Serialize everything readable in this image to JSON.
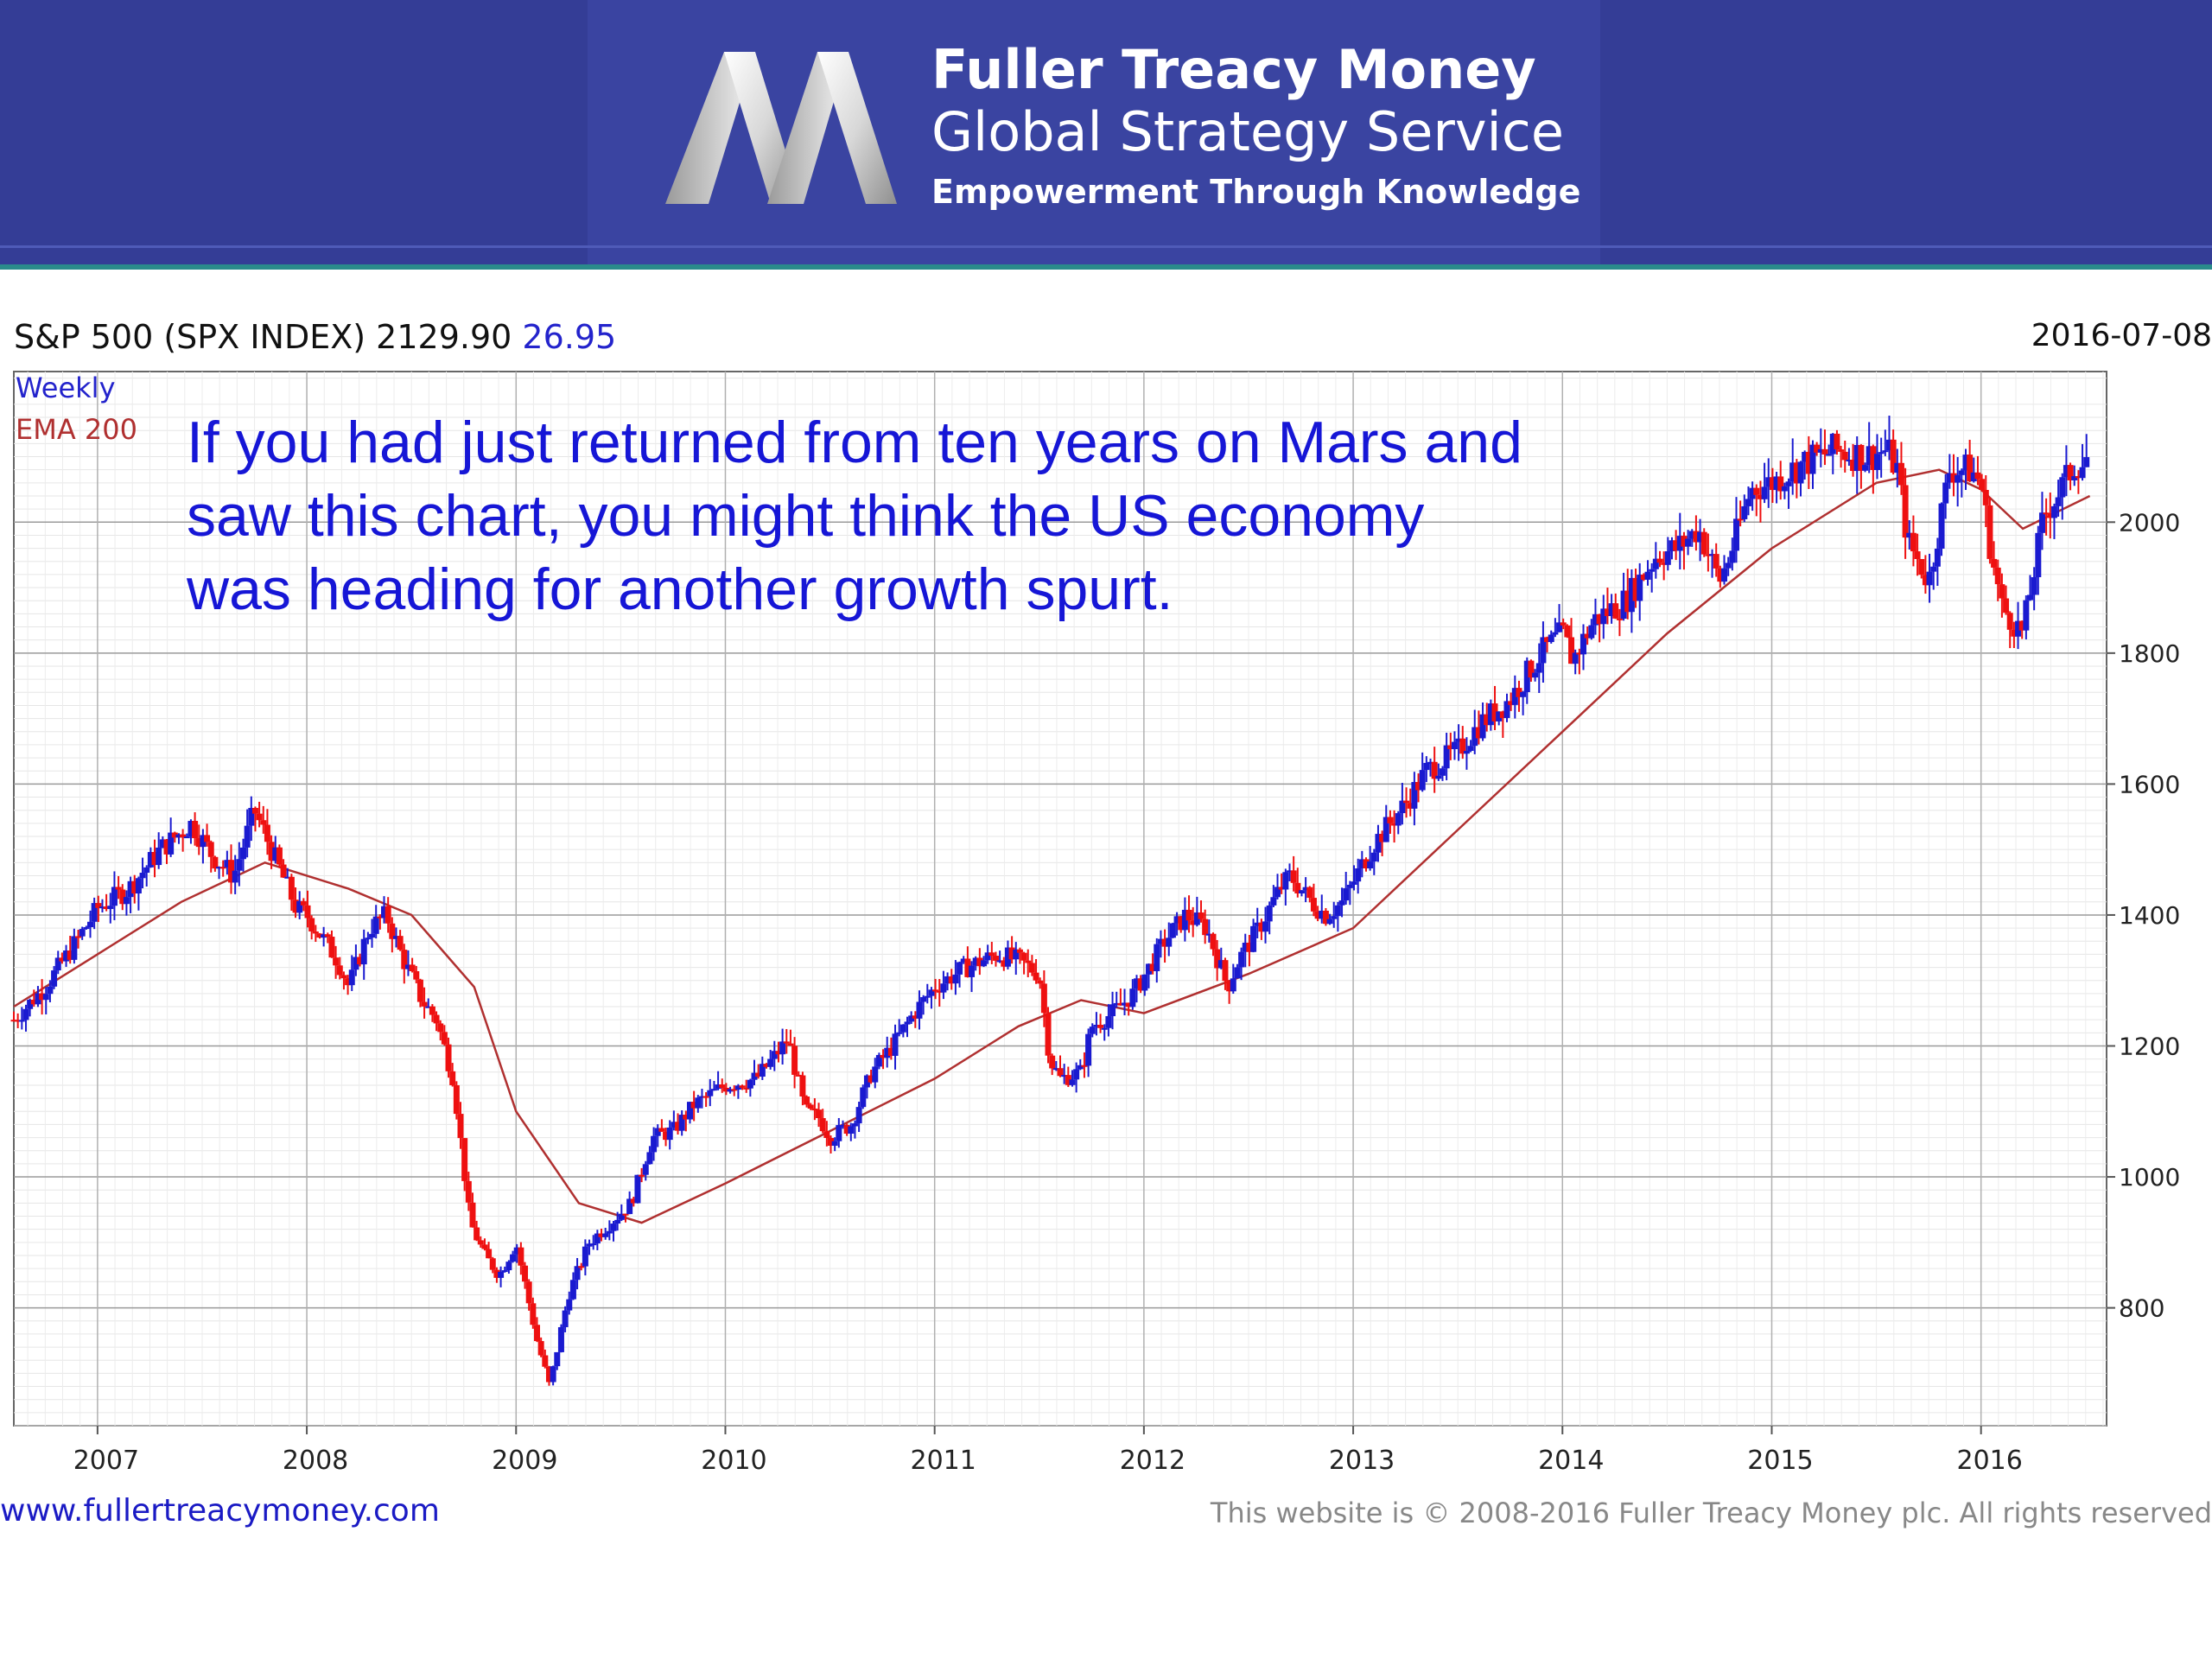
{
  "banner": {
    "brand_name": "Fuller Treacy Money",
    "brand_sub": "Global Strategy Service",
    "tagline": "Empowerment Through Knowledge",
    "logo_icon": "m-ribbon-logo-icon",
    "background_color": "#343d96"
  },
  "chart_header": {
    "title": "S&P 500 (SPX INDEX) 2129.90",
    "change": "26.95",
    "date": "2016-07-08"
  },
  "legend": {
    "period": "Weekly",
    "ema": "EMA 200"
  },
  "annotation": "If you had just returned from ten years on Mars and saw this chart, you might think the US economy was heading for another growth spurt.",
  "footer": {
    "url": "www.fullertreacymoney.com",
    "copyright": "This website is © 2008-2016 Fuller Treacy Money plc. All rights reserved"
  },
  "chart_data": {
    "type": "line",
    "title": "S&P 500 (SPX INDEX) 2129.90",
    "xlabel": "",
    "ylabel": "",
    "x_range": [
      2006.6,
      2016.6
    ],
    "ylim": [
      620,
      2230
    ],
    "y_ticks": [
      800,
      1000,
      1200,
      1400,
      1600,
      1800,
      2000
    ],
    "x_ticks": [
      2007,
      2008,
      2009,
      2010,
      2011,
      2012,
      2013,
      2014,
      2015,
      2016
    ],
    "x_tick_labels": [
      "2007",
      "2008",
      "2009",
      "2010",
      "2011",
      "2012",
      "2013",
      "2014",
      "2015",
      "2016"
    ],
    "grid": true,
    "colors": {
      "up": "#1a1ad0",
      "down": "#ee1010",
      "ema": "#b03030"
    },
    "series": [
      {
        "name": "Weekly",
        "x": [
          2006.6,
          2006.75,
          2006.9,
          2007.0,
          2007.15,
          2007.3,
          2007.45,
          2007.55,
          2007.65,
          2007.75,
          2007.83,
          2007.95,
          2008.0,
          2008.15,
          2008.2,
          2008.3,
          2008.38,
          2008.45,
          2008.55,
          2008.62,
          2008.7,
          2008.78,
          2008.85,
          2008.92,
          2009.0,
          2009.1,
          2009.16,
          2009.25,
          2009.35,
          2009.45,
          2009.55,
          2009.65,
          2009.75,
          2009.85,
          2010.0,
          2010.15,
          2010.3,
          2010.38,
          2010.45,
          2010.5,
          2010.6,
          2010.7,
          2010.8,
          2010.9,
          2011.0,
          2011.15,
          2011.3,
          2011.4,
          2011.5,
          2011.55,
          2011.6,
          2011.7,
          2011.75,
          2011.85,
          2011.95,
          2012.1,
          2012.2,
          2012.3,
          2012.4,
          2012.45,
          2012.55,
          2012.65,
          2012.7,
          2012.8,
          2012.87,
          2012.95,
          2013.1,
          2013.25,
          2013.35,
          2013.45,
          2013.5,
          2013.6,
          2013.75,
          2013.9,
          2014.0,
          2014.05,
          2014.15,
          2014.3,
          2014.45,
          2014.55,
          2014.65,
          2014.75,
          2014.8,
          2014.9,
          2015.0,
          2015.15,
          2015.3,
          2015.45,
          2015.55,
          2015.6,
          2015.65,
          2015.75,
          2015.85,
          2015.95,
          2016.0,
          2016.05,
          2016.1,
          2016.2,
          2016.3,
          2016.4,
          2016.45,
          2016.5,
          2016.52
        ],
        "values": [
          1240,
          1290,
          1360,
          1410,
          1440,
          1500,
          1540,
          1490,
          1460,
          1560,
          1500,
          1410,
          1400,
          1330,
          1290,
          1380,
          1400,
          1340,
          1270,
          1240,
          1150,
          930,
          880,
          850,
          900,
          750,
          680,
          820,
          900,
          930,
          960,
          1060,
          1070,
          1110,
          1140,
          1150,
          1210,
          1100,
          1090,
          1060,
          1080,
          1160,
          1200,
          1250,
          1290,
          1320,
          1340,
          1330,
          1310,
          1180,
          1150,
          1160,
          1230,
          1250,
          1280,
          1360,
          1400,
          1380,
          1290,
          1330,
          1380,
          1440,
          1460,
          1420,
          1400,
          1420,
          1510,
          1570,
          1620,
          1640,
          1650,
          1690,
          1730,
          1800,
          1830,
          1790,
          1850,
          1880,
          1950,
          1960,
          1990,
          1910,
          1950,
          2050,
          2060,
          2090,
          2110,
          2100,
          2110,
          2080,
          1970,
          1910,
          2080,
          2080,
          2060,
          1950,
          1870,
          1830,
          2010,
          2060,
          2090,
          2090,
          2130
        ]
      },
      {
        "name": "EMA 200",
        "x": [
          2006.6,
          2007.0,
          2007.4,
          2007.8,
          2008.2,
          2008.5,
          2008.8,
          2009.0,
          2009.3,
          2009.6,
          2010.0,
          2010.5,
          2011.0,
          2011.4,
          2011.7,
          2012.0,
          2012.5,
          2013.0,
          2013.5,
          2014.0,
          2014.5,
          2015.0,
          2015.5,
          2015.8,
          2016.0,
          2016.2,
          2016.52
        ],
        "values": [
          1260,
          1340,
          1420,
          1480,
          1440,
          1400,
          1290,
          1100,
          960,
          930,
          990,
          1070,
          1150,
          1230,
          1270,
          1250,
          1310,
          1380,
          1530,
          1680,
          1830,
          1960,
          2060,
          2080,
          2050,
          1990,
          2040
        ]
      }
    ]
  }
}
